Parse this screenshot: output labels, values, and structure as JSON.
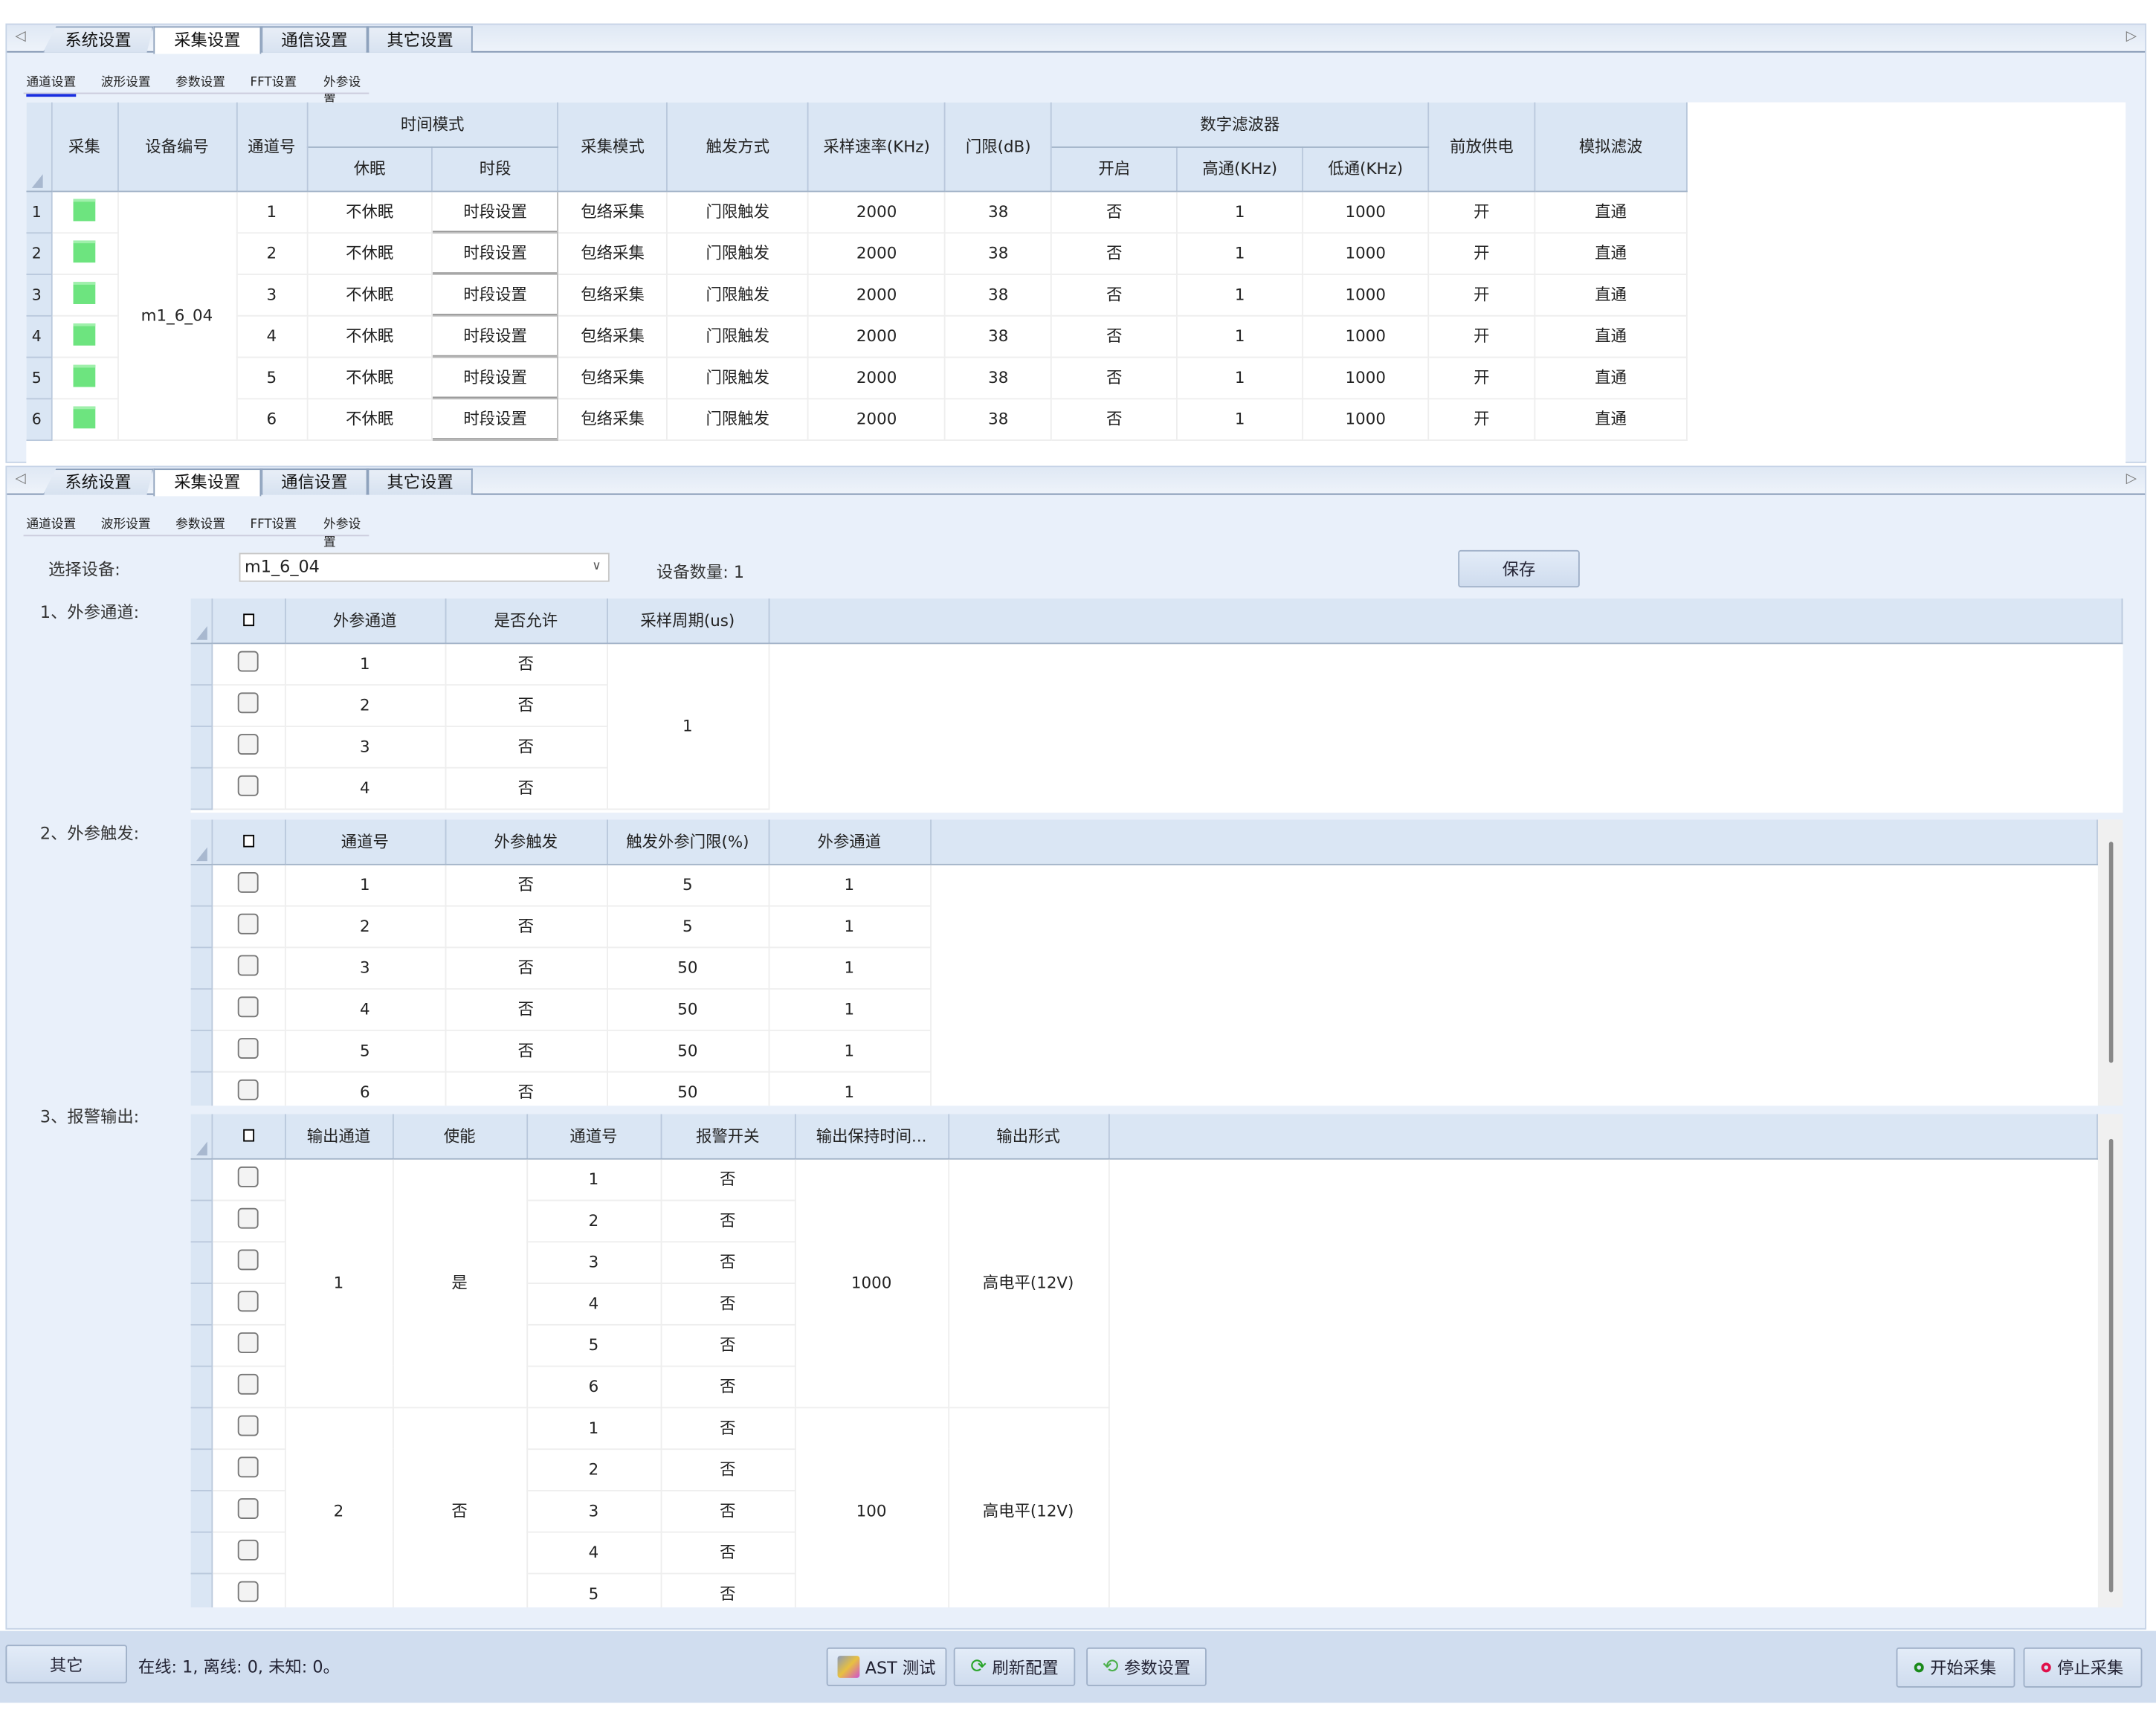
{
  "top_panel": {
    "tabs": [
      "系统设置",
      "采集设置",
      "通信设置",
      "其它设置"
    ],
    "active_tab": 1,
    "subtabs": [
      "通道设置",
      "波形设置",
      "参数设置",
      "FFT设置",
      "外参设置"
    ],
    "active_subtab": 0,
    "channel_table": {
      "headers": {
        "collect": "采集",
        "device_id": "设备编号",
        "channel": "通道号",
        "time_mode": "时间模式",
        "sleep": "休眠",
        "period": "时段",
        "collect_mode": "采集模式",
        "trigger": "触发方式",
        "sample_rate": "采样速率(KHz)",
        "threshold": "门限(dB)",
        "digital_filter": "数字滤波器",
        "enable": "开启",
        "highpass": "高通(KHz)",
        "lowpass": "低通(KHz)",
        "preamp": "前放供电",
        "analog_filter": "模拟滤波"
      },
      "device_id": "m1_6_04",
      "collect_color": "#6de47f",
      "rows": [
        {
          "n": "1",
          "channel": "1",
          "sleep": "不休眠",
          "period": "时段设置",
          "mode": "包络采集",
          "trigger": "门限触发",
          "rate": "2000",
          "threshold": "38",
          "enable": "否",
          "hp": "1",
          "lp": "1000",
          "preamp": "开",
          "analog": "直通"
        },
        {
          "n": "2",
          "channel": "2",
          "sleep": "不休眠",
          "period": "时段设置",
          "mode": "包络采集",
          "trigger": "门限触发",
          "rate": "2000",
          "threshold": "38",
          "enable": "否",
          "hp": "1",
          "lp": "1000",
          "preamp": "开",
          "analog": "直通"
        },
        {
          "n": "3",
          "channel": "3",
          "sleep": "不休眠",
          "period": "时段设置",
          "mode": "包络采集",
          "trigger": "门限触发",
          "rate": "2000",
          "threshold": "38",
          "enable": "否",
          "hp": "1",
          "lp": "1000",
          "preamp": "开",
          "analog": "直通"
        },
        {
          "n": "4",
          "channel": "4",
          "sleep": "不休眠",
          "period": "时段设置",
          "mode": "包络采集",
          "trigger": "门限触发",
          "rate": "2000",
          "threshold": "38",
          "enable": "否",
          "hp": "1",
          "lp": "1000",
          "preamp": "开",
          "analog": "直通"
        },
        {
          "n": "5",
          "channel": "5",
          "sleep": "不休眠",
          "period": "时段设置",
          "mode": "包络采集",
          "trigger": "门限触发",
          "rate": "2000",
          "threshold": "38",
          "enable": "否",
          "hp": "1",
          "lp": "1000",
          "preamp": "开",
          "analog": "直通"
        },
        {
          "n": "6",
          "channel": "6",
          "sleep": "不休眠",
          "period": "时段设置",
          "mode": "包络采集",
          "trigger": "门限触发",
          "rate": "2000",
          "threshold": "38",
          "enable": "否",
          "hp": "1",
          "lp": "1000",
          "preamp": "开",
          "analog": "直通"
        }
      ]
    }
  },
  "bottom_panel": {
    "tabs": [
      "系统设置",
      "采集设置",
      "通信设置",
      "其它设置"
    ],
    "active_tab": 1,
    "subtabs": [
      "通道设置",
      "波形设置",
      "参数设置",
      "FFT设置",
      "外参设置"
    ],
    "active_subtab": 4,
    "select_device_label": "选择设备:",
    "select_device_value": "m1_6_04",
    "device_count": "设备数量: 1",
    "save_label": "保存",
    "section1": {
      "label": "1、外参通道:",
      "headers": [
        "外参通道",
        "是否允许",
        "采样周期(us)"
      ],
      "sample_period": "1",
      "rows": [
        [
          "1",
          "否"
        ],
        [
          "2",
          "否"
        ],
        [
          "3",
          "否"
        ],
        [
          "4",
          "否"
        ]
      ]
    },
    "section2": {
      "label": "2、外参触发:",
      "headers": [
        "通道号",
        "外参触发",
        "触发外参门限(%)",
        "外参通道"
      ],
      "rows": [
        [
          "1",
          "否",
          "5",
          "1"
        ],
        [
          "2",
          "否",
          "5",
          "1"
        ],
        [
          "3",
          "否",
          "50",
          "1"
        ],
        [
          "4",
          "否",
          "50",
          "1"
        ],
        [
          "5",
          "否",
          "50",
          "1"
        ],
        [
          "6",
          "否",
          "50",
          "1"
        ]
      ]
    },
    "section3": {
      "label": "3、报警输出:",
      "headers": [
        "输出通道",
        "使能",
        "通道号",
        "报警开关",
        "输出保持时间...",
        "输出形式"
      ],
      "groups": [
        {
          "out": "1",
          "enable": "是",
          "hold": "1000",
          "form": "高电平(12V)",
          "rows": [
            [
              "1",
              "否"
            ],
            [
              "2",
              "否"
            ],
            [
              "3",
              "否"
            ],
            [
              "4",
              "否"
            ],
            [
              "5",
              "否"
            ],
            [
              "6",
              "否"
            ]
          ]
        },
        {
          "out": "2",
          "enable": "否",
          "hold": "100",
          "form": "高电平(12V)",
          "rows": [
            [
              "1",
              "否"
            ],
            [
              "2",
              "否"
            ],
            [
              "3",
              "否"
            ],
            [
              "4",
              "否"
            ],
            [
              "5",
              "否"
            ]
          ]
        }
      ]
    }
  },
  "footer": {
    "other_label": "其它",
    "status": "在线: 1, 离线: 0, 未知: 0。",
    "ast_label": "AST 测试",
    "refresh_label": "刷新配置",
    "params_label": "参数设置",
    "start_label": "开始采集",
    "stop_label": "停止采集",
    "start_color": "#1a8a1a",
    "stop_color": "#e0104a"
  }
}
